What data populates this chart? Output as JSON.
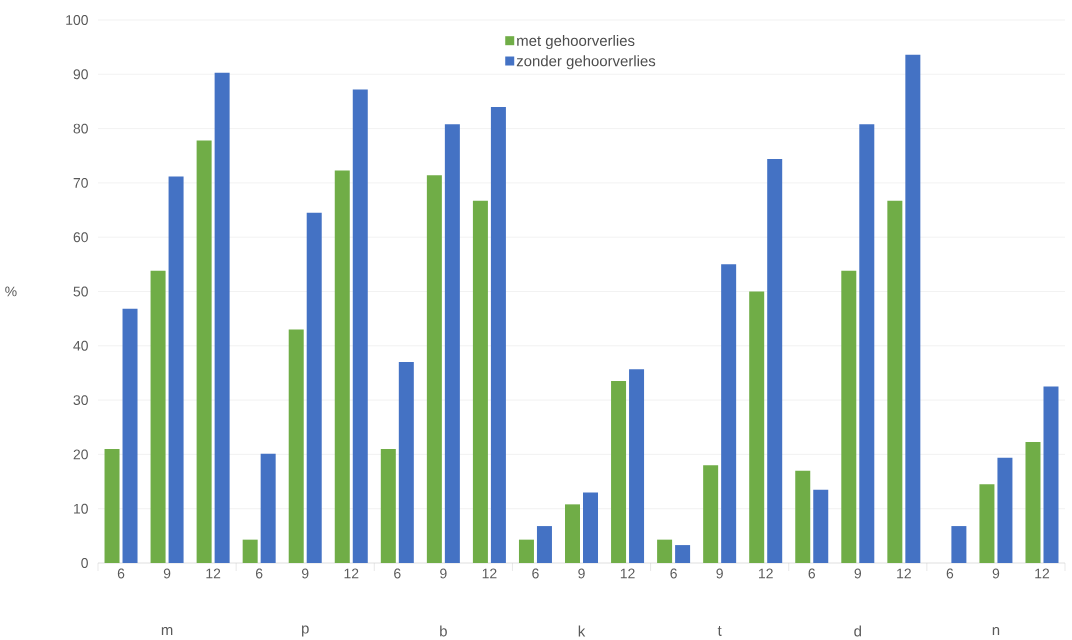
{
  "chart_data": {
    "type": "bar",
    "ylabel": "%",
    "categories": [
      "6",
      "9",
      "12",
      "6",
      "9",
      "12",
      "6",
      "9",
      "12",
      "6",
      "9",
      "12",
      "6",
      "9",
      "12",
      "6",
      "9",
      "12",
      "6",
      "9",
      "12"
    ],
    "series": [
      {
        "name": "met gehoorverlies",
        "color": "#70ad47",
        "values": [
          21,
          53.8,
          77.8,
          4.3,
          43,
          72.3,
          21,
          71.4,
          66.7,
          4.3,
          10.8,
          33.5,
          4.3,
          18,
          50,
          17,
          53.8,
          66.7,
          0,
          14.5,
          22.3
        ]
      },
      {
        "name": "zonder gehoorverlies",
        "color": "#4472c4",
        "values": [
          46.8,
          71.2,
          90.3,
          20.1,
          64.5,
          87.2,
          37,
          80.8,
          84,
          6.8,
          13,
          35.7,
          3.3,
          55,
          74.4,
          13.5,
          80.8,
          93.6,
          6.8,
          19.4,
          32.5
        ]
      }
    ],
    "annotations": [
      "m",
      "p",
      "b",
      "k",
      "t",
      "d",
      "n"
    ],
    "ylim": [
      0,
      100
    ],
    "yticks": [
      0,
      10,
      20,
      30,
      40,
      50,
      60,
      70,
      80,
      90,
      100
    ],
    "grid": "y",
    "legend": "top"
  }
}
